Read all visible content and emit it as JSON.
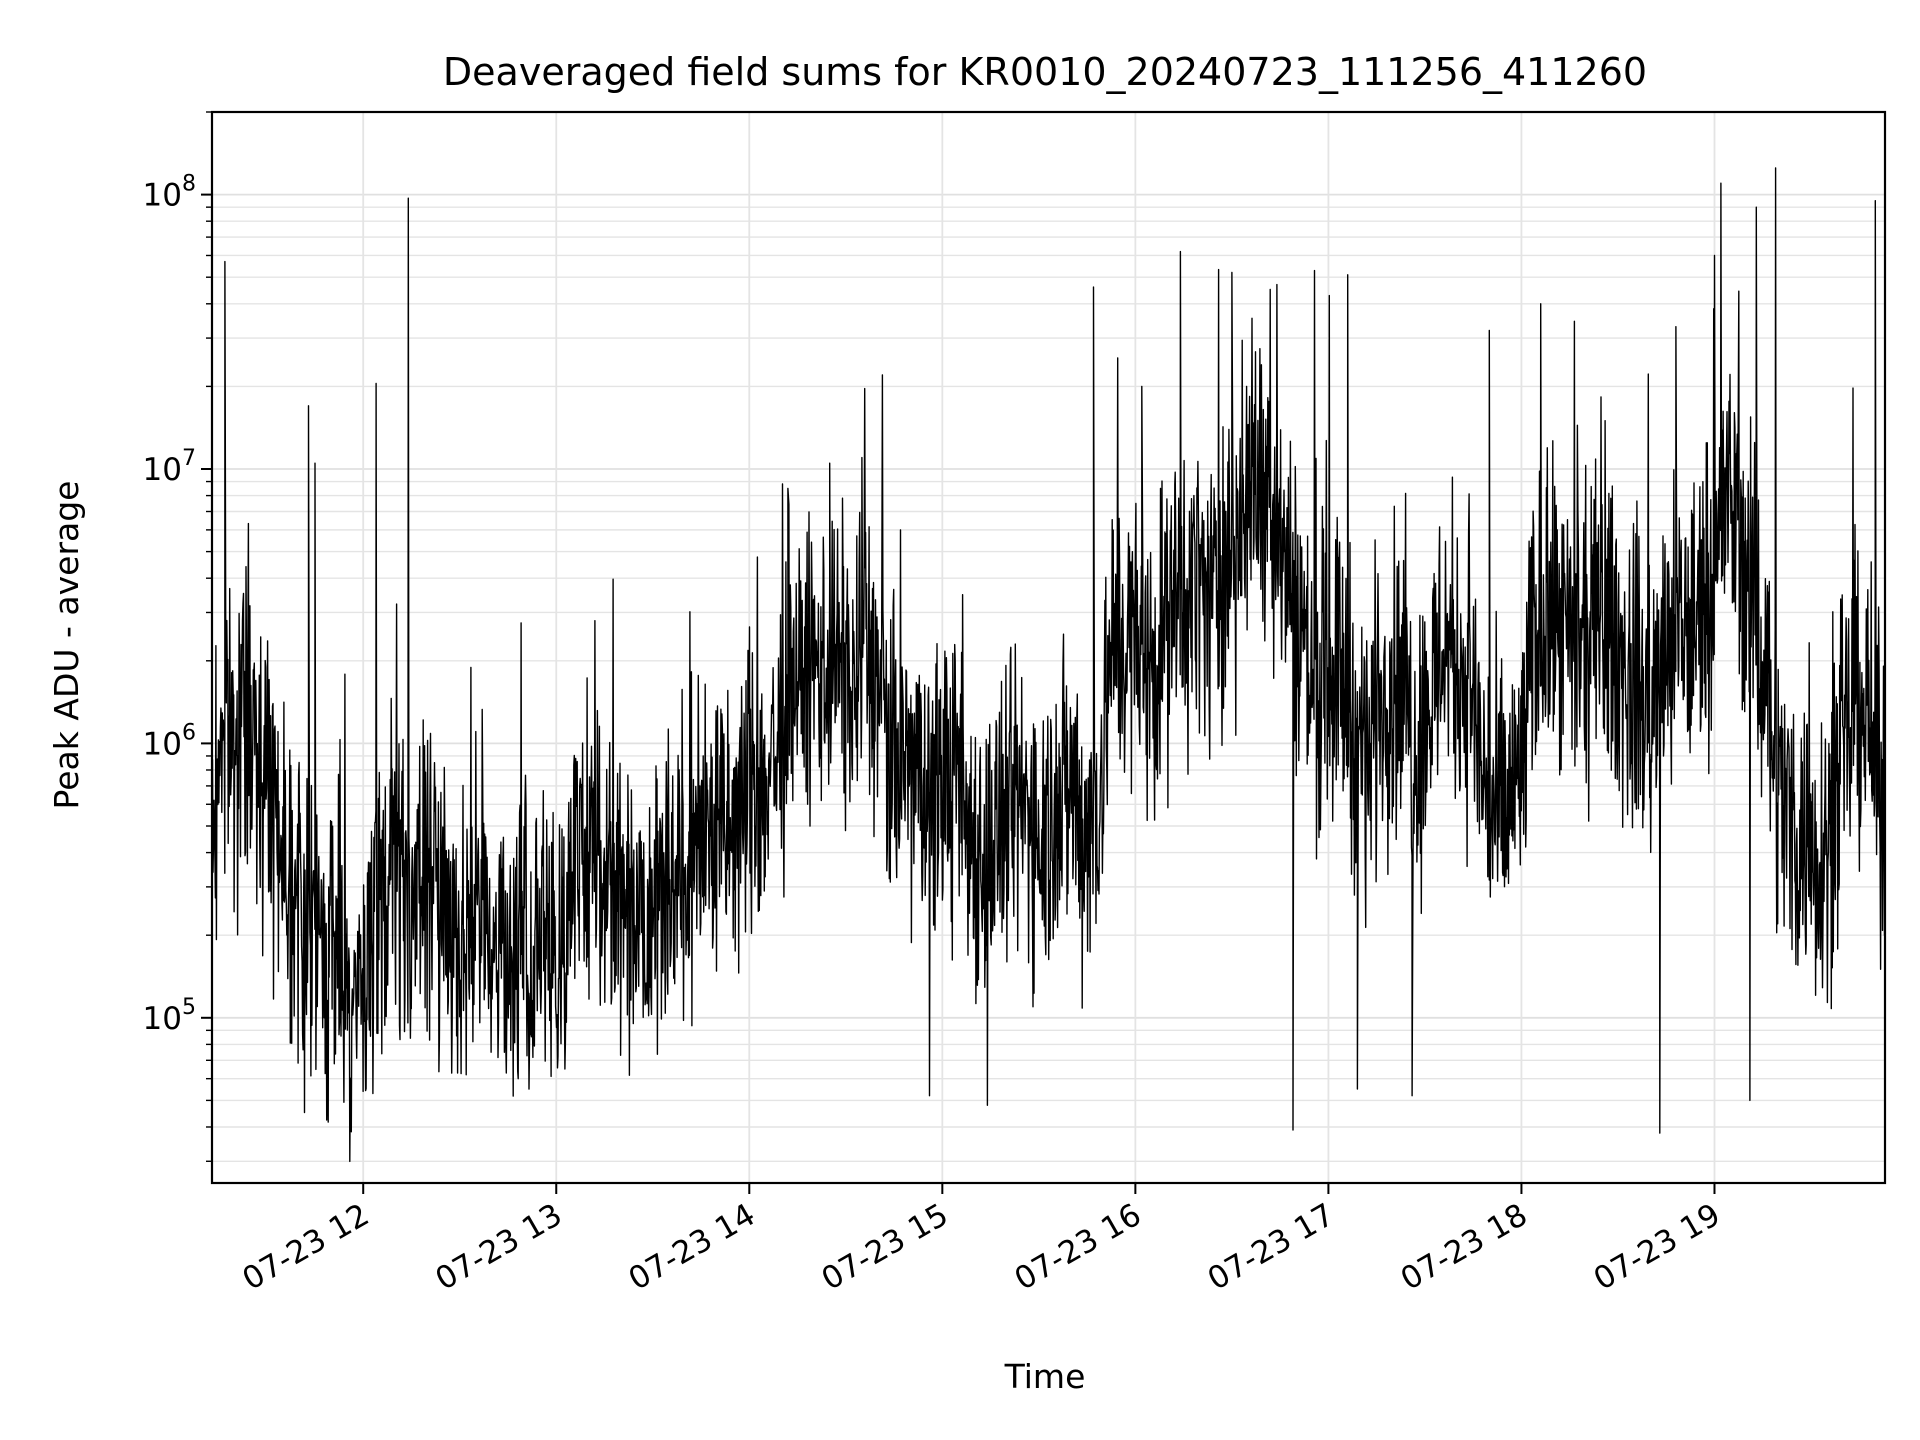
{
  "chart_data": {
    "type": "line",
    "title": "Deaveraged field sums for KR0010_20240723_111256_411260",
    "xlabel": "Time",
    "ylabel": "Peak ADU - average",
    "yscale": "log",
    "ylim": [
      25000,
      200000000
    ],
    "xlim": [
      "2024-07-23 11:13",
      "2024-07-23 19:53"
    ],
    "grid": true,
    "line_color": "#000000",
    "x_ticks": [
      {
        "value": "2024-07-23 12:00",
        "label": "07-23 12"
      },
      {
        "value": "2024-07-23 13:00",
        "label": "07-23 13"
      },
      {
        "value": "2024-07-23 14:00",
        "label": "07-23 14"
      },
      {
        "value": "2024-07-23 15:00",
        "label": "07-23 15"
      },
      {
        "value": "2024-07-23 16:00",
        "label": "07-23 16"
      },
      {
        "value": "2024-07-23 17:00",
        "label": "07-23 17"
      },
      {
        "value": "2024-07-23 18:00",
        "label": "07-23 18"
      },
      {
        "value": "2024-07-23 19:00",
        "label": "07-23 19"
      }
    ],
    "y_ticks": [
      {
        "value": 100000,
        "base": "10",
        "exp": "5"
      },
      {
        "value": 1000000,
        "base": "10",
        "exp": "6"
      },
      {
        "value": 10000000,
        "base": "10",
        "exp": "7"
      },
      {
        "value": 100000000,
        "base": "10",
        "exp": "8"
      }
    ],
    "series": [
      {
        "x": [
          "2024-07-23 11:13",
          "2024-07-23 11:16",
          "2024-07-23 11:20",
          "2024-07-23 11:24",
          "2024-07-23 11:28",
          "2024-07-23 11:32",
          "2024-07-23 11:36",
          "2024-07-23 11:40",
          "2024-07-23 11:44",
          "2024-07-23 11:48",
          "2024-07-23 11:52",
          "2024-07-23 11:56",
          "2024-07-23 12:00",
          "2024-07-23 12:04",
          "2024-07-23 12:08",
          "2024-07-23 12:12",
          "2024-07-23 12:16",
          "2024-07-23 12:20",
          "2024-07-23 12:24",
          "2024-07-23 12:28",
          "2024-07-23 12:32",
          "2024-07-23 12:36",
          "2024-07-23 12:40",
          "2024-07-23 12:44",
          "2024-07-23 12:48",
          "2024-07-23 12:52",
          "2024-07-23 12:56",
          "2024-07-23 13:00",
          "2024-07-23 13:04",
          "2024-07-23 13:08",
          "2024-07-23 13:12",
          "2024-07-23 13:16",
          "2024-07-23 13:20",
          "2024-07-23 13:24",
          "2024-07-23 13:28",
          "2024-07-23 13:32",
          "2024-07-23 13:36",
          "2024-07-23 13:40",
          "2024-07-23 13:44",
          "2024-07-23 13:48",
          "2024-07-23 13:52",
          "2024-07-23 13:56",
          "2024-07-23 14:00",
          "2024-07-23 14:04",
          "2024-07-23 14:08",
          "2024-07-23 14:12",
          "2024-07-23 14:16",
          "2024-07-23 14:20",
          "2024-07-23 14:24",
          "2024-07-23 14:28",
          "2024-07-23 14:32",
          "2024-07-23 14:36",
          "2024-07-23 14:40",
          "2024-07-23 14:44",
          "2024-07-23 14:48",
          "2024-07-23 14:52",
          "2024-07-23 14:56",
          "2024-07-23 15:00",
          "2024-07-23 15:04",
          "2024-07-23 15:08",
          "2024-07-23 15:12",
          "2024-07-23 15:16",
          "2024-07-23 15:20",
          "2024-07-23 15:24",
          "2024-07-23 15:28",
          "2024-07-23 15:32",
          "2024-07-23 15:36",
          "2024-07-23 15:40",
          "2024-07-23 15:44",
          "2024-07-23 15:48",
          "2024-07-23 15:52",
          "2024-07-23 15:56",
          "2024-07-23 16:00",
          "2024-07-23 16:04",
          "2024-07-23 16:08",
          "2024-07-23 16:12",
          "2024-07-23 16:16",
          "2024-07-23 16:20",
          "2024-07-23 16:24",
          "2024-07-23 16:28",
          "2024-07-23 16:32",
          "2024-07-23 16:36",
          "2024-07-23 16:40",
          "2024-07-23 16:44",
          "2024-07-23 16:48",
          "2024-07-23 16:52",
          "2024-07-23 16:56",
          "2024-07-23 17:00",
          "2024-07-23 17:04",
          "2024-07-23 17:08",
          "2024-07-23 17:12",
          "2024-07-23 17:16",
          "2024-07-23 17:20",
          "2024-07-23 17:24",
          "2024-07-23 17:28",
          "2024-07-23 17:32",
          "2024-07-23 17:36",
          "2024-07-23 17:40",
          "2024-07-23 17:44",
          "2024-07-23 17:48",
          "2024-07-23 17:52",
          "2024-07-23 17:56",
          "2024-07-23 18:00",
          "2024-07-23 18:04",
          "2024-07-23 18:08",
          "2024-07-23 18:12",
          "2024-07-23 18:16",
          "2024-07-23 18:20",
          "2024-07-23 18:24",
          "2024-07-23 18:28",
          "2024-07-23 18:32",
          "2024-07-23 18:36",
          "2024-07-23 18:40",
          "2024-07-23 18:44",
          "2024-07-23 18:48",
          "2024-07-23 18:52",
          "2024-07-23 18:56",
          "2024-07-23 19:00",
          "2024-07-23 19:04",
          "2024-07-23 19:08",
          "2024-07-23 19:12",
          "2024-07-23 19:16",
          "2024-07-23 19:20",
          "2024-07-23 19:24",
          "2024-07-23 19:28",
          "2024-07-23 19:32",
          "2024-07-23 19:36",
          "2024-07-23 19:40",
          "2024-07-23 19:44",
          "2024-07-23 19:48",
          "2024-07-23 19:52"
        ],
        "y": [
          400000,
          1200000,
          1000000,
          1300000,
          900000,
          700000,
          400000,
          250000,
          180000,
          150000,
          220000,
          120000,
          110000,
          200000,
          350000,
          300000,
          260000,
          320000,
          280000,
          230000,
          200000,
          250000,
          220000,
          180000,
          160000,
          170000,
          180000,
          170000,
          300000,
          350000,
          400000,
          380000,
          300000,
          280000,
          250000,
          320000,
          350000,
          300000,
          400000,
          500000,
          450000,
          500000,
          700000,
          650000,
          900000,
          1200000,
          1600000,
          1800000,
          2200000,
          2000000,
          1500000,
          2500000,
          1600000,
          800000,
          900000,
          700000,
          600000,
          800000,
          700000,
          500000,
          400000,
          450000,
          500000,
          600000,
          550000,
          500000,
          600000,
          700000,
          500000,
          550000,
          2000000,
          2500000,
          2200000,
          1800000,
          2500000,
          3000000,
          3500000,
          4000000,
          3000000,
          5000000,
          6000000,
          8000000,
          10000000,
          7000000,
          4000000,
          2500000,
          1500000,
          2000000,
          1800000,
          1200000,
          900000,
          1500000,
          1800000,
          1300000,
          1000000,
          1500000,
          2500000,
          2000000,
          1600000,
          800000,
          500000,
          600000,
          800000,
          2500000,
          2800000,
          2500000,
          2000000,
          2200000,
          2800000,
          2500000,
          1800000,
          1500000,
          1400000,
          2000000,
          2200000,
          2500000,
          3000000,
          5000000,
          8000000,
          6000000,
          3000000,
          2000000,
          700000,
          500000,
          450000,
          400000,
          500000,
          800000,
          1600000,
          1200000,
          600000
        ]
      }
    ],
    "spikes": [
      {
        "x": "2024-07-23 11:17",
        "y": 57000000
      },
      {
        "x": "2024-07-23 11:43",
        "y": 17000000
      },
      {
        "x": "2024-07-23 11:45",
        "y": 10500000
      },
      {
        "x": "2024-07-23 12:04",
        "y": 20500000
      },
      {
        "x": "2024-07-23 12:14",
        "y": 97000000
      },
      {
        "x": "2024-07-23 13:12",
        "y": 2800000
      },
      {
        "x": "2024-07-23 14:12",
        "y": 8500000
      },
      {
        "x": "2024-07-23 14:25",
        "y": 10500000
      },
      {
        "x": "2024-07-23 14:35",
        "y": 11000000
      },
      {
        "x": "2024-07-23 14:47",
        "y": 6000000
      },
      {
        "x": "2024-07-23 15:47",
        "y": 46000000
      },
      {
        "x": "2024-07-23 16:02",
        "y": 20000000
      },
      {
        "x": "2024-07-23 16:14",
        "y": 62000000
      },
      {
        "x": "2024-07-23 16:30",
        "y": 52000000
      },
      {
        "x": "2024-07-23 16:44",
        "y": 47000000
      },
      {
        "x": "2024-07-23 17:06",
        "y": 51000000
      },
      {
        "x": "2024-07-23 17:50",
        "y": 32000000
      },
      {
        "x": "2024-07-23 18:06",
        "y": 40000000
      },
      {
        "x": "2024-07-23 18:26",
        "y": 15000000
      },
      {
        "x": "2024-07-23 18:48",
        "y": 33000000
      },
      {
        "x": "2024-07-23 19:00",
        "y": 60000000
      },
      {
        "x": "2024-07-23 19:02",
        "y": 110000000
      },
      {
        "x": "2024-07-23 19:13",
        "y": 90000000
      },
      {
        "x": "2024-07-23 19:19",
        "y": 125000000
      },
      {
        "x": "2024-07-23 19:50",
        "y": 95000000
      }
    ],
    "dips": [
      {
        "x": "2024-07-23 11:51",
        "y": 68000.0
      },
      {
        "x": "2024-07-23 12:03",
        "y": 53000
      },
      {
        "x": "2024-07-23 12:32",
        "y": 62000
      },
      {
        "x": "2024-07-23 13:20",
        "y": 73000
      },
      {
        "x": "2024-07-23 14:56",
        "y": 52000
      },
      {
        "x": "2024-07-23 15:14",
        "y": 48000
      },
      {
        "x": "2024-07-23 16:49",
        "y": 39000
      },
      {
        "x": "2024-07-23 17:09",
        "y": 55000
      },
      {
        "x": "2024-07-23 17:26",
        "y": 52000
      },
      {
        "x": "2024-07-23 18:43",
        "y": 38000
      },
      {
        "x": "2024-07-23 19:11",
        "y": 50000
      }
    ]
  }
}
